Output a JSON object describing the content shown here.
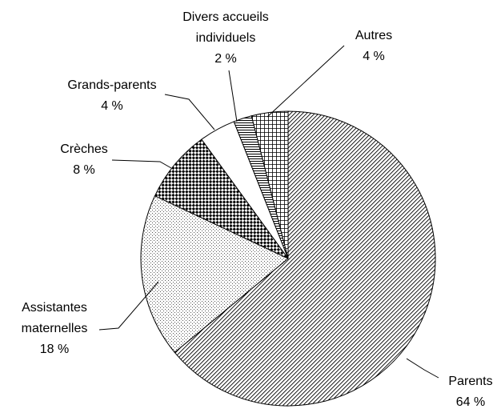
{
  "chart_data": {
    "type": "pie",
    "categories": [
      "Parents",
      "Assistantes maternelles",
      "Crèches",
      "Grands-parents",
      "Divers accueils individuels",
      "Autres"
    ],
    "values": [
      64,
      18,
      8,
      4,
      2,
      4
    ],
    "value_labels": [
      "64 %",
      "18 %",
      "8 %",
      "4 %",
      "2 %",
      "4 %"
    ],
    "patterns": [
      "diagonal",
      "dots",
      "checker",
      "none",
      "horizontal",
      "grid"
    ],
    "color": "#000000"
  }
}
